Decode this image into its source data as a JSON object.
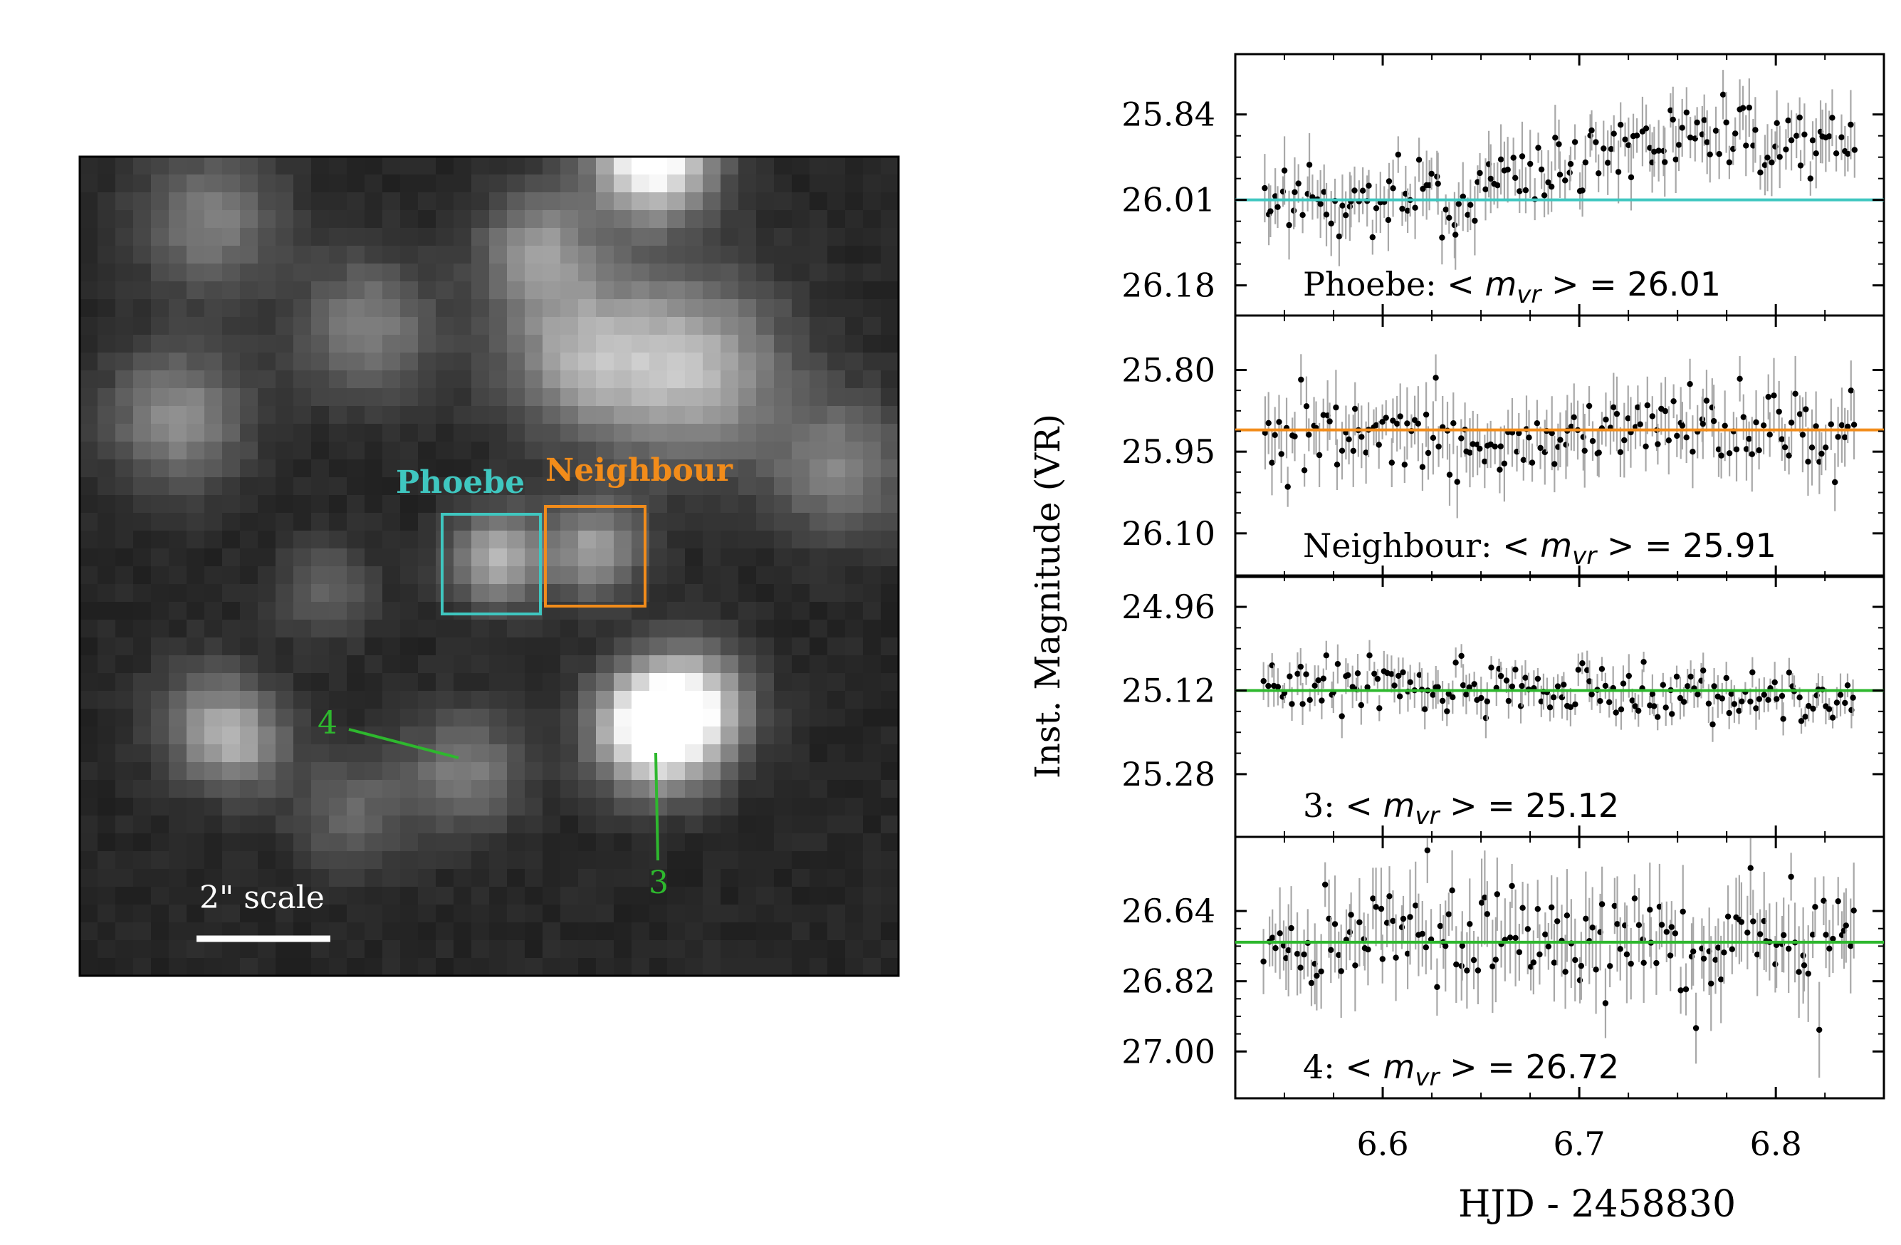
{
  "image_panel": {
    "labels": {
      "phoebe": "Phoebe",
      "neighbour": "Neighbour",
      "star3": "3",
      "star4": "4",
      "scale": "2\" scale"
    },
    "colors": {
      "phoebe": "#3fc7c0",
      "neighbour": "#f28c1a",
      "stars": "#2eb82e",
      "scale_bar": "#ffffff"
    }
  },
  "chart_data": {
    "type": "scatter",
    "xlabel": "HJD - 2458830",
    "ylabel": "Inst. Magnitude (VR)",
    "xlim": [
      6.525,
      6.855
    ],
    "xticks": [
      "6.6",
      "6.7",
      "6.8"
    ],
    "xtick_values": [
      6.6,
      6.7,
      6.8
    ],
    "y_inverted": true,
    "panels": [
      {
        "name": "Phoebe",
        "label_prefix": "Phoebe:",
        "mean_text": "26.01",
        "mean": 26.01,
        "ylim": [
          26.24,
          25.72
        ],
        "yticks": [
          "25.84",
          "26.01",
          "26.18"
        ],
        "ytick_values": [
          25.84,
          26.01,
          26.18
        ],
        "line_color": "#3fc7c0",
        "trend": [
          [
            6.54,
            26.01
          ],
          [
            6.65,
            26.0
          ],
          [
            6.7,
            25.93
          ],
          [
            6.78,
            25.88
          ],
          [
            6.84,
            25.9
          ]
        ],
        "scatter": 0.04,
        "err": 0.05
      },
      {
        "name": "Neighbour",
        "label_prefix": "Neighbour:",
        "mean_text": "25.91",
        "mean": 25.91,
        "ylim": [
          26.18,
          25.7
        ],
        "yticks": [
          "25.80",
          "25.95",
          "26.10"
        ],
        "ytick_values": [
          25.8,
          25.95,
          26.1
        ],
        "line_color": "#f28c1a",
        "trend": [
          [
            6.54,
            25.93
          ],
          [
            6.84,
            25.91
          ]
        ],
        "scatter": 0.04,
        "err": 0.05
      },
      {
        "name": "3",
        "label_prefix": "3:",
        "mean_text": "25.12",
        "mean": 25.12,
        "ylim": [
          25.4,
          24.9
        ],
        "yticks": [
          "24.96",
          "25.12",
          "25.28"
        ],
        "ytick_values": [
          24.96,
          25.12,
          25.28
        ],
        "line_color": "#2eb82e",
        "trend": [
          [
            6.54,
            25.11
          ],
          [
            6.84,
            25.13
          ]
        ],
        "scatter": 0.025,
        "err": 0.03
      },
      {
        "name": "4",
        "label_prefix": "4:",
        "mean_text": "26.72",
        "mean": 26.72,
        "ylim": [
          27.12,
          26.45
        ],
        "yticks": [
          "26.64",
          "26.82",
          "27.00"
        ],
        "ytick_values": [
          26.64,
          26.82,
          27.0
        ],
        "line_color": "#2eb82e",
        "trend": [
          [
            6.54,
            26.72
          ],
          [
            6.84,
            26.71
          ]
        ],
        "scatter": 0.07,
        "err": 0.09
      }
    ],
    "n_points": 170,
    "point_color": "#000000",
    "errorbar_color": "#a8a8a8"
  }
}
